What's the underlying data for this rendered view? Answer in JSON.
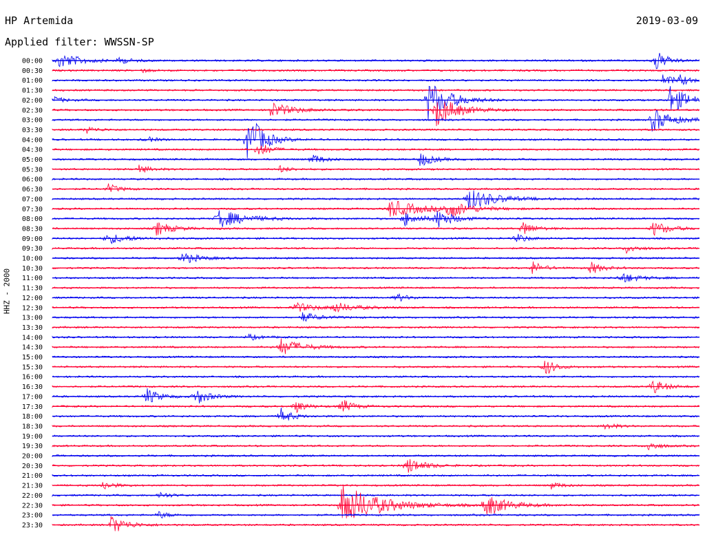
{
  "header": {
    "station": "HP Artemida",
    "date": "2019-03-09",
    "filter": "Applied filter: WWSSN-SP"
  },
  "chart_data": {
    "type": "line",
    "title": "HP Artemida",
    "ylabel": "HHZ - 2000",
    "colors": {
      "even_trace": "#0000ee",
      "odd_trace": "#ff0033"
    },
    "rows": [
      "00:00",
      "00:30",
      "01:00",
      "01:30",
      "02:00",
      "02:30",
      "03:00",
      "03:30",
      "04:00",
      "04:30",
      "05:00",
      "05:30",
      "06:00",
      "06:30",
      "07:00",
      "07:30",
      "08:00",
      "08:30",
      "09:00",
      "09:30",
      "10:00",
      "10:30",
      "11:00",
      "11:30",
      "12:00",
      "12:30",
      "13:00",
      "13:30",
      "14:00",
      "14:30",
      "15:00",
      "15:30",
      "16:00",
      "16:30",
      "17:00",
      "17:30",
      "18:00",
      "18:30",
      "19:00",
      "19:30",
      "20:00",
      "20:30",
      "21:00",
      "21:30",
      "22:00",
      "22:30",
      "23:00",
      "23:30"
    ],
    "x_range_minutes": [
      0,
      30
    ],
    "events": [
      {
        "row": 0,
        "minute": 0.3,
        "amp": 1.3,
        "dur": 2.0
      },
      {
        "row": 0,
        "minute": 3.1,
        "amp": 0.5,
        "dur": 1.0
      },
      {
        "row": 0,
        "minute": 27.9,
        "amp": 2.0,
        "dur": 1.0
      },
      {
        "row": 1,
        "minute": 4.1,
        "amp": 0.3,
        "dur": 1.0
      },
      {
        "row": 2,
        "minute": 28.3,
        "amp": 0.9,
        "dur": 1.2
      },
      {
        "row": 2,
        "minute": 29.1,
        "amp": 0.7,
        "dur": 1.0
      },
      {
        "row": 4,
        "minute": 0.1,
        "amp": 0.5,
        "dur": 1.0
      },
      {
        "row": 4,
        "minute": 17.4,
        "amp": 3.5,
        "dur": 2.0
      },
      {
        "row": 4,
        "minute": 28.6,
        "amp": 2.5,
        "dur": 1.6
      },
      {
        "row": 5,
        "minute": 10.1,
        "amp": 1.3,
        "dur": 2.0
      },
      {
        "row": 5,
        "minute": 17.8,
        "amp": 2.5,
        "dur": 2.0
      },
      {
        "row": 6,
        "minute": 27.8,
        "amp": 2.0,
        "dur": 1.8
      },
      {
        "row": 7,
        "minute": 1.6,
        "amp": 0.5,
        "dur": 1.0
      },
      {
        "row": 8,
        "minute": 4.3,
        "amp": 0.5,
        "dur": 1.0
      },
      {
        "row": 8,
        "minute": 9.0,
        "amp": 3.5,
        "dur": 1.5
      },
      {
        "row": 8,
        "minute": 9.3,
        "amp": 1.0,
        "dur": 1.0
      },
      {
        "row": 9,
        "minute": 9.5,
        "amp": 1.5,
        "dur": 1.0
      },
      {
        "row": 10,
        "minute": 12.0,
        "amp": 1.0,
        "dur": 1.0
      },
      {
        "row": 10,
        "minute": 17.0,
        "amp": 1.3,
        "dur": 1.2
      },
      {
        "row": 11,
        "minute": 4.0,
        "amp": 0.7,
        "dur": 1.0
      },
      {
        "row": 11,
        "minute": 10.5,
        "amp": 0.6,
        "dur": 1.0
      },
      {
        "row": 13,
        "minute": 2.6,
        "amp": 0.8,
        "dur": 1.0
      },
      {
        "row": 14,
        "minute": 19.2,
        "amp": 2.0,
        "dur": 2.5
      },
      {
        "row": 15,
        "minute": 15.6,
        "amp": 1.5,
        "dur": 3.0
      },
      {
        "row": 15,
        "minute": 18.2,
        "amp": 1.5,
        "dur": 2.0
      },
      {
        "row": 16,
        "minute": 7.6,
        "amp": 1.6,
        "dur": 2.5
      },
      {
        "row": 16,
        "minute": 16.3,
        "amp": 1.2,
        "dur": 1.5
      },
      {
        "row": 16,
        "minute": 17.8,
        "amp": 1.5,
        "dur": 1.5
      },
      {
        "row": 17,
        "minute": 4.8,
        "amp": 1.2,
        "dur": 1.5
      },
      {
        "row": 17,
        "minute": 21.8,
        "amp": 1.3,
        "dur": 1.0
      },
      {
        "row": 17,
        "minute": 27.8,
        "amp": 1.3,
        "dur": 1.5
      },
      {
        "row": 18,
        "minute": 2.5,
        "amp": 0.9,
        "dur": 2.0
      },
      {
        "row": 18,
        "minute": 21.5,
        "amp": 0.8,
        "dur": 1.0
      },
      {
        "row": 19,
        "minute": 26.6,
        "amp": 0.8,
        "dur": 1.0
      },
      {
        "row": 20,
        "minute": 6.0,
        "amp": 1.0,
        "dur": 1.5
      },
      {
        "row": 21,
        "minute": 22.2,
        "amp": 1.2,
        "dur": 1.0
      },
      {
        "row": 21,
        "minute": 24.9,
        "amp": 1.2,
        "dur": 1.0
      },
      {
        "row": 22,
        "minute": 26.3,
        "amp": 1.0,
        "dur": 1.5
      },
      {
        "row": 24,
        "minute": 15.9,
        "amp": 0.8,
        "dur": 1.0
      },
      {
        "row": 25,
        "minute": 11.2,
        "amp": 0.8,
        "dur": 2.0
      },
      {
        "row": 25,
        "minute": 13.0,
        "amp": 0.8,
        "dur": 2.0
      },
      {
        "row": 26,
        "minute": 11.6,
        "amp": 0.8,
        "dur": 1.5
      },
      {
        "row": 28,
        "minute": 9.1,
        "amp": 0.5,
        "dur": 1.0
      },
      {
        "row": 29,
        "minute": 10.5,
        "amp": 1.5,
        "dur": 2.0
      },
      {
        "row": 31,
        "minute": 22.8,
        "amp": 1.5,
        "dur": 1.0
      },
      {
        "row": 33,
        "minute": 27.8,
        "amp": 1.3,
        "dur": 1.2
      },
      {
        "row": 34,
        "minute": 4.3,
        "amp": 1.5,
        "dur": 1.2
      },
      {
        "row": 34,
        "minute": 6.6,
        "amp": 1.5,
        "dur": 1.2
      },
      {
        "row": 35,
        "minute": 11.2,
        "amp": 1.2,
        "dur": 1.0
      },
      {
        "row": 35,
        "minute": 13.4,
        "amp": 1.3,
        "dur": 1.0
      },
      {
        "row": 36,
        "minute": 10.6,
        "amp": 1.3,
        "dur": 1.0
      },
      {
        "row": 37,
        "minute": 25.6,
        "amp": 0.6,
        "dur": 1.0
      },
      {
        "row": 39,
        "minute": 27.6,
        "amp": 0.8,
        "dur": 1.0
      },
      {
        "row": 41,
        "minute": 16.4,
        "amp": 1.5,
        "dur": 1.5
      },
      {
        "row": 43,
        "minute": 2.3,
        "amp": 0.8,
        "dur": 1.0
      },
      {
        "row": 43,
        "minute": 23.1,
        "amp": 0.6,
        "dur": 1.0
      },
      {
        "row": 44,
        "minute": 4.9,
        "amp": 0.6,
        "dur": 1.0
      },
      {
        "row": 45,
        "minute": 13.4,
        "amp": 3.5,
        "dur": 3.5
      },
      {
        "row": 45,
        "minute": 20.0,
        "amp": 2.0,
        "dur": 2.0
      },
      {
        "row": 46,
        "minute": 4.9,
        "amp": 0.6,
        "dur": 1.0
      },
      {
        "row": 47,
        "minute": 2.7,
        "amp": 1.5,
        "dur": 1.5
      }
    ]
  }
}
